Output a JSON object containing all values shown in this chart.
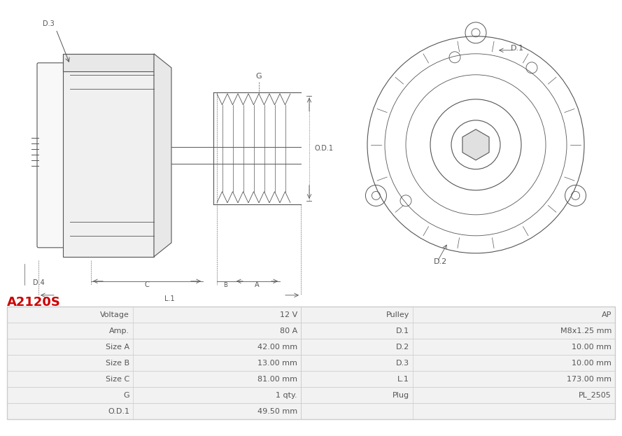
{
  "title": "A2120S",
  "title_color": "#cc0000",
  "bg_color": "#ffffff",
  "table_header_bg": "#e8e8e8",
  "table_row_bg1": "#f2f2f2",
  "table_row_bg2": "#ffffff",
  "table_border_color": "#cccccc",
  "left_col_labels": [
    "Voltage",
    "Amp.",
    "Size A",
    "Size B",
    "Size C",
    "G",
    "O.D.1"
  ],
  "left_col_values": [
    "12 V",
    "80 A",
    "42.00 mm",
    "13.00 mm",
    "81.00 mm",
    "1 qty.",
    "49.50 mm"
  ],
  "right_col_labels": [
    "Pulley",
    "D.1",
    "D.2",
    "D.3",
    "L.1",
    "Plug",
    ""
  ],
  "right_col_values": [
    "AP",
    "M8x1.25 mm",
    "10.00 mm",
    "10.00 mm",
    "173.00 mm",
    "PL_2505",
    ""
  ],
  "diagram_top_label": "D.3",
  "diagram_g_label": "G",
  "diagram_od1_label": "O.D.1",
  "diagram_d4_label": "D.4",
  "diagram_c_label": "C",
  "diagram_b_label": "B",
  "diagram_a_label": "A",
  "diagram_l1_label": "L.1",
  "diagram_d1_label": "D.1",
  "diagram_d2_label": "D.2",
  "line_color": "#555555",
  "dim_color": "#555555",
  "text_color": "#555555"
}
